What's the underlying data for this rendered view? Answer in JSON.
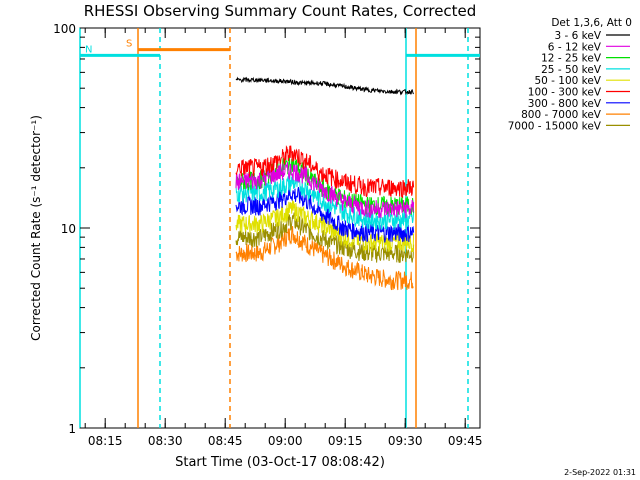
{
  "chart_data": {
    "type": "line",
    "title": "RHESSI Observing Summary Count Rates, Corrected",
    "xlabel": "Start Time (03-Oct-17 08:08:42)",
    "ylabel": "Corrected Count Rate (s⁻¹ detector⁻¹)",
    "yscale": "log",
    "ylim": [
      1,
      100
    ],
    "xlim_minutes": [
      0,
      100
    ],
    "x_ticks": [
      {
        "label": "08:15",
        "minute": 6.3
      },
      {
        "label": "08:30",
        "minute": 21.3
      },
      {
        "label": "08:45",
        "minute": 36.3
      },
      {
        "label": "09:00",
        "minute": 51.3
      },
      {
        "label": "09:15",
        "minute": 66.3
      },
      {
        "label": "09:30",
        "minute": 81.3
      },
      {
        "label": "09:45",
        "minute": 96.3
      }
    ],
    "y_ticks": [
      {
        "label": "1",
        "value": 1
      },
      {
        "label": "10",
        "value": 10
      },
      {
        "label": "100",
        "value": 100
      }
    ],
    "legend_header": "Det 1,3,6, Att 0",
    "legend_position": "top-right outside",
    "series": [
      {
        "name": "3 - 6 keV",
        "color": "#000000",
        "x": [
          39,
          45,
          52,
          56,
          60,
          66,
          72,
          78,
          82,
          83.5
        ],
        "y": [
          55,
          55,
          54,
          53,
          53,
          51,
          49,
          48,
          48,
          48
        ]
      },
      {
        "name": "6 - 12 keV",
        "color": "#e000e0",
        "x": [
          39,
          45,
          50,
          53,
          56,
          60,
          66,
          72,
          78,
          83.5
        ],
        "y": [
          17,
          17.5,
          19,
          19.5,
          18.5,
          16,
          13.5,
          12.5,
          12.5,
          12.5
        ]
      },
      {
        "name": "12 - 25 keV",
        "color": "#00e000",
        "x": [
          39,
          45,
          50,
          53,
          56,
          60,
          66,
          72,
          78,
          83.5
        ],
        "y": [
          17,
          17.5,
          20,
          21,
          19,
          16,
          14,
          13,
          13,
          13
        ]
      },
      {
        "name": "25 - 50 keV",
        "color": "#00e0e0",
        "x": [
          39,
          45,
          50,
          53,
          56,
          60,
          66,
          72,
          78,
          83.5
        ],
        "y": [
          15,
          15,
          16,
          17,
          16,
          14,
          12,
          11,
          11,
          11
        ]
      },
      {
        "name": "50 - 100 keV",
        "color": "#e0e000",
        "x": [
          39,
          45,
          50,
          53,
          56,
          60,
          66,
          72,
          78,
          83.5
        ],
        "y": [
          10.5,
          10.5,
          11.5,
          12.5,
          11.5,
          10.5,
          9,
          8.5,
          8.5,
          8.5
        ]
      },
      {
        "name": "100 - 300 keV",
        "color": "#ff0000",
        "x": [
          39,
          45,
          50,
          53,
          56,
          60,
          66,
          72,
          78,
          83.5
        ],
        "y": [
          20,
          20,
          22,
          24,
          22,
          19,
          17,
          16,
          16,
          16
        ]
      },
      {
        "name": "300 - 800 keV",
        "color": "#0000ff",
        "x": [
          39,
          45,
          50,
          53,
          56,
          60,
          66,
          72,
          78,
          83.5
        ],
        "y": [
          13,
          13,
          14,
          15,
          14,
          12,
          10,
          9.5,
          9.5,
          9.5
        ]
      },
      {
        "name": "800 - 7000 keV",
        "color": "#ff8000",
        "x": [
          39,
          45,
          50,
          53,
          56,
          60,
          66,
          72,
          78,
          83.5
        ],
        "y": [
          7.5,
          7.5,
          8.5,
          9.5,
          8.5,
          7.5,
          6.5,
          5.8,
          5.5,
          5.5
        ]
      },
      {
        "name": "7000 - 15000 keV",
        "color": "#9a8f00",
        "x": [
          39,
          45,
          50,
          53,
          56,
          60,
          66,
          72,
          78,
          83.5
        ],
        "y": [
          9,
          9,
          10,
          11,
          10,
          9,
          8,
          7.5,
          7.5,
          7.5
        ]
      }
    ],
    "annotations": [
      {
        "label": "S",
        "color": "#ff8000",
        "start_minute": 14.5,
        "end_minute": 37.5,
        "y": 78
      },
      {
        "label": "N",
        "color": "#00e0e0",
        "start_minute": 0,
        "end_minute": 20,
        "y": 73
      },
      {
        "label": "",
        "color": "#00e0e0",
        "start_minute": 81.5,
        "end_minute": 100,
        "y": 73
      }
    ],
    "vertical_lines": [
      {
        "minute": 0,
        "color": "#00e0e0",
        "style": "solid"
      },
      {
        "minute": 14.5,
        "color": "#ff8000",
        "style": "solid"
      },
      {
        "minute": 20,
        "color": "#00e0e0",
        "style": "dashed"
      },
      {
        "minute": 37.5,
        "color": "#ff8000",
        "style": "dashed"
      },
      {
        "minute": 81.5,
        "color": "#00e0e0",
        "style": "solid"
      },
      {
        "minute": 84,
        "color": "#ff8000",
        "style": "solid"
      },
      {
        "minute": 97,
        "color": "#00e0e0",
        "style": "dashed"
      }
    ],
    "grid": false
  },
  "footer": {
    "timestamp": "2-Sep-2022 01:31"
  }
}
